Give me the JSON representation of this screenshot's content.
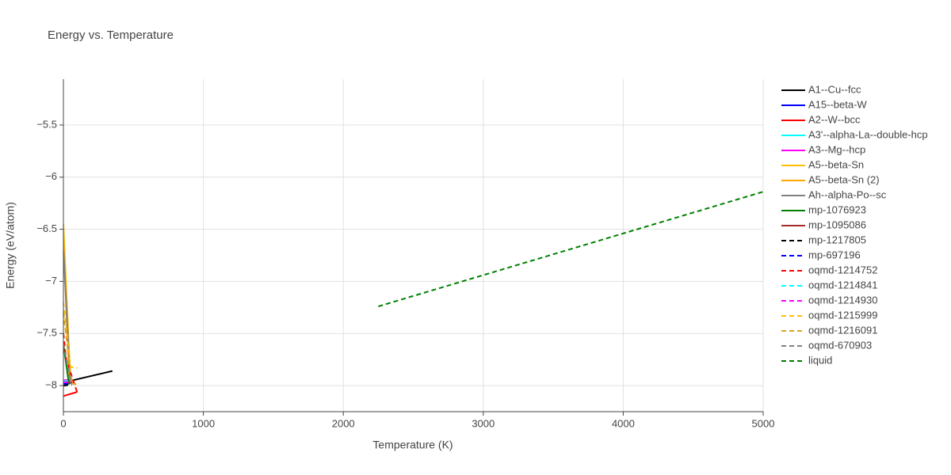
{
  "chart_data": {
    "type": "line",
    "title": "Energy vs. Temperature",
    "x_label": "Temperature (K)",
    "y_label": "Energy (eV/atom)",
    "xlim": [
      0,
      5000
    ],
    "xticks": [
      0,
      1000,
      2000,
      3000,
      4000,
      5000
    ],
    "ylim": [
      -8.25,
      -5.06
    ],
    "yticks": [
      {
        "value": -8,
        "label": "−8"
      },
      {
        "value": -7.5,
        "label": "−7.5"
      },
      {
        "value": -7,
        "label": "−7"
      },
      {
        "value": -6.5,
        "label": "−6.5"
      },
      {
        "value": -6,
        "label": "−6"
      },
      {
        "value": -5.5,
        "label": "−5.5"
      }
    ],
    "grid": true,
    "series": [
      {
        "name": "A1--Cu--fcc",
        "color": "#000000",
        "dash": false,
        "x": [
          0,
          350
        ],
        "values": [
          -7.97,
          -7.86
        ]
      },
      {
        "name": "A15--beta-W",
        "color": "#0000ff",
        "dash": false,
        "x": [
          0,
          60
        ],
        "values": [
          -8.0,
          -7.97
        ]
      },
      {
        "name": "A2--W--bcc",
        "color": "#ff0000",
        "dash": false,
        "x": [
          0,
          100
        ],
        "values": [
          -8.1,
          -8.06
        ]
      },
      {
        "name": "A3'--alpha-La--double-hcp",
        "color": "#00ffff",
        "dash": false,
        "x": [
          0,
          60
        ],
        "values": [
          -7.97,
          -7.96
        ]
      },
      {
        "name": "A3--Mg--hcp",
        "color": "#ff00ff",
        "dash": false,
        "x": [
          0,
          60
        ],
        "values": [
          -7.95,
          -7.94
        ]
      },
      {
        "name": "A5--beta-Sn",
        "color": "#ffbf00",
        "dash": false,
        "x": [
          0,
          50,
          80
        ],
        "values": [
          -6.45,
          -7.95,
          -7.99
        ]
      },
      {
        "name": "A5--beta-Sn (2)",
        "color": "#ffa500",
        "dash": false,
        "x": [
          0,
          40,
          70
        ],
        "values": [
          -6.6,
          -7.9,
          -7.98
        ]
      },
      {
        "name": "Ah--alpha-Po--sc",
        "color": "#808080",
        "dash": false,
        "x": [
          0,
          50
        ],
        "values": [
          -6.7,
          -7.98
        ]
      },
      {
        "name": "mp-1076923",
        "color": "#008000",
        "dash": false,
        "x": [
          0,
          40
        ],
        "values": [
          -7.6,
          -7.99
        ]
      },
      {
        "name": "mp-1095086",
        "color": "#a52a2a",
        "dash": false,
        "x": [
          0,
          50
        ],
        "values": [
          -7.98,
          -7.97
        ]
      },
      {
        "name": "mp-1217805",
        "color": "#000000",
        "dash": true,
        "x": [
          0,
          60
        ],
        "values": [
          -8.0,
          -7.99
        ]
      },
      {
        "name": "mp-697196",
        "color": "#0000ff",
        "dash": true,
        "x": [
          0,
          60
        ],
        "values": [
          -7.98,
          -7.97
        ]
      },
      {
        "name": "oqmd-1214752",
        "color": "#ff0000",
        "dash": true,
        "x": [
          0,
          20,
          100
        ],
        "values": [
          -7.5,
          -7.75,
          -8.07
        ]
      },
      {
        "name": "oqmd-1214841",
        "color": "#00ffff",
        "dash": true,
        "x": [
          0,
          50
        ],
        "values": [
          -7.96,
          -7.95
        ]
      },
      {
        "name": "oqmd-1214930",
        "color": "#ff00ff",
        "dash": true,
        "x": [
          0,
          60
        ],
        "values": [
          -7.97,
          -7.96
        ]
      },
      {
        "name": "oqmd-1215999",
        "color": "#ffbf00",
        "dash": true,
        "x": [
          0,
          50,
          100
        ],
        "values": [
          -7.2,
          -7.82,
          -7.83
        ]
      },
      {
        "name": "oqmd-1216091",
        "color": "#daa520",
        "dash": true,
        "x": [
          0,
          60,
          100
        ],
        "values": [
          -7.3,
          -7.98,
          -7.99
        ]
      },
      {
        "name": "oqmd-670903",
        "color": "#808080",
        "dash": true,
        "x": [
          0,
          50
        ],
        "values": [
          -7.6,
          -7.95
        ]
      },
      {
        "name": "liquid",
        "color": "#008000",
        "dash": true,
        "x": [
          2250,
          5000
        ],
        "values": [
          -7.24,
          -6.14
        ]
      }
    ]
  }
}
